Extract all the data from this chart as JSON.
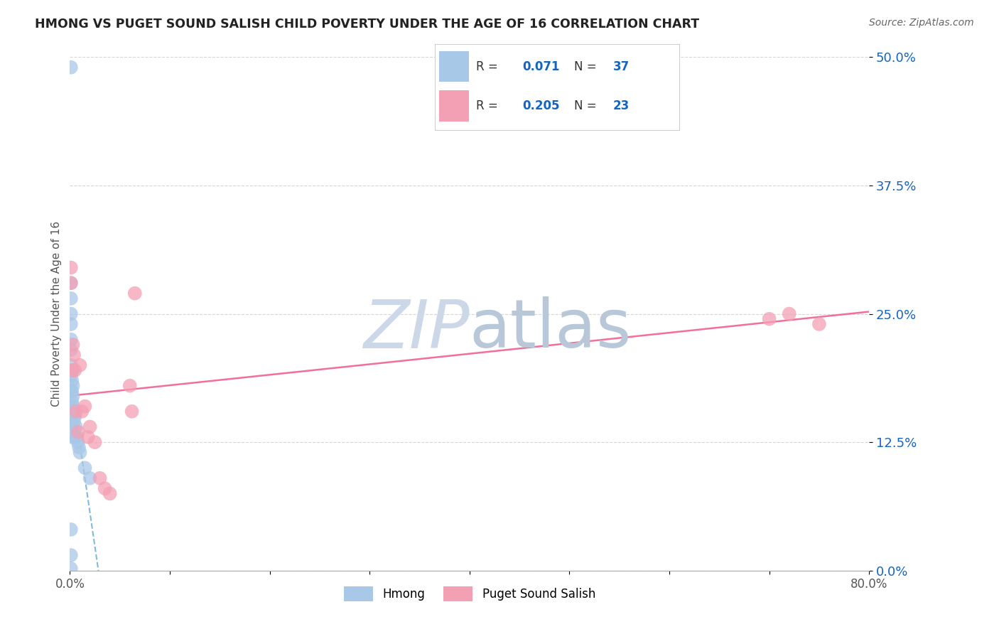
{
  "title": "HMONG VS PUGET SOUND SALISH CHILD POVERTY UNDER THE AGE OF 16 CORRELATION CHART",
  "source": "Source: ZipAtlas.com",
  "ylabel": "Child Poverty Under the Age of 16",
  "xlim": [
    0.0,
    0.8
  ],
  "ylim": [
    0.0,
    0.5
  ],
  "yticks": [
    0.0,
    0.125,
    0.25,
    0.375,
    0.5
  ],
  "ytick_labels": [
    "0.0%",
    "12.5%",
    "25.0%",
    "37.5%",
    "50.0%"
  ],
  "hmong_color": "#a8c8e8",
  "salish_color": "#f4a0b4",
  "hmong_line_color": "#6baed6",
  "salish_line_color": "#f06090",
  "hmong_R": 0.071,
  "hmong_N": 37,
  "salish_R": 0.205,
  "salish_N": 23,
  "legend_R_color": "#1565c0",
  "legend_N_color": "#1565c0",
  "background_color": "#ffffff",
  "grid_color": "#cccccc",
  "title_color": "#222222",
  "ytick_color": "#1565c0",
  "watermark_color": "#ccd8e8",
  "hmong_x": [
    0.001,
    0.001,
    0.001,
    0.001,
    0.001,
    0.001,
    0.001,
    0.001,
    0.001,
    0.001,
    0.001,
    0.001,
    0.001,
    0.002,
    0.002,
    0.002,
    0.002,
    0.002,
    0.002,
    0.002,
    0.003,
    0.003,
    0.003,
    0.004,
    0.004,
    0.005,
    0.005,
    0.006,
    0.007,
    0.008,
    0.009,
    0.01,
    0.015,
    0.02,
    0.001,
    0.001,
    0.001
  ],
  "hmong_y": [
    0.49,
    0.28,
    0.265,
    0.25,
    0.24,
    0.225,
    0.215,
    0.2,
    0.195,
    0.19,
    0.175,
    0.16,
    0.145,
    0.195,
    0.185,
    0.175,
    0.165,
    0.155,
    0.14,
    0.13,
    0.18,
    0.17,
    0.16,
    0.155,
    0.145,
    0.15,
    0.13,
    0.14,
    0.13,
    0.125,
    0.12,
    0.115,
    0.1,
    0.09,
    0.04,
    0.015,
    0.002
  ],
  "salish_x": [
    0.001,
    0.001,
    0.003,
    0.003,
    0.004,
    0.005,
    0.006,
    0.008,
    0.01,
    0.012,
    0.015,
    0.018,
    0.02,
    0.025,
    0.03,
    0.035,
    0.04,
    0.06,
    0.062,
    0.065,
    0.7,
    0.72,
    0.75
  ],
  "salish_y": [
    0.295,
    0.28,
    0.22,
    0.195,
    0.21,
    0.195,
    0.155,
    0.135,
    0.2,
    0.155,
    0.16,
    0.13,
    0.14,
    0.125,
    0.09,
    0.08,
    0.075,
    0.18,
    0.155,
    0.27,
    0.245,
    0.25,
    0.24
  ]
}
